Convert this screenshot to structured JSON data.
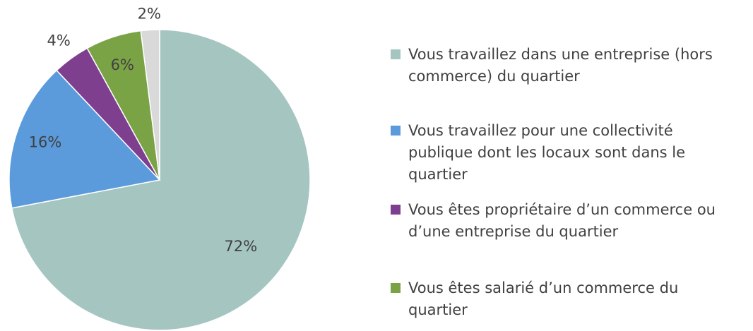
{
  "chart_data": {
    "type": "pie",
    "categories": [
      "Vous travaillez dans une entreprise (hors commerce) du quartier",
      "Vous travaillez pour une collectivité publique dont les locaux sont dans le quartier",
      "Vous êtes propriétaire d’un commerce ou d’une entreprise du quartier",
      "Vous êtes salarié d’un commerce du quartier",
      null
    ],
    "values": [
      72,
      16,
      4,
      6,
      2
    ],
    "value_labels": [
      "72%",
      "16%",
      "4%",
      "6%",
      "2%"
    ],
    "colors": [
      "#a5c5c1",
      "#5b9bdc",
      "#7e3f8e",
      "#7aa346",
      "#d9d9d9"
    ],
    "legend": "right"
  }
}
